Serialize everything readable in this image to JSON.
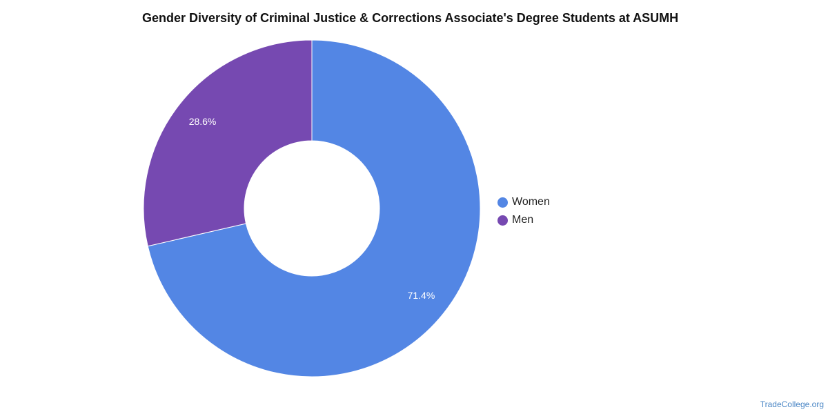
{
  "chart_data": {
    "type": "pie",
    "title": "Gender Diversity of Criminal Justice & Corrections Associate's Degree Students at ASUMH",
    "categories": [
      "Women",
      "Men"
    ],
    "values": [
      71.4,
      28.6
    ],
    "labels": [
      "71.4%",
      "28.6%"
    ],
    "colors": [
      "#5386e4",
      "#7649b1"
    ],
    "donut": true,
    "legend_position": "right"
  },
  "credit": "TradeCollege.org"
}
